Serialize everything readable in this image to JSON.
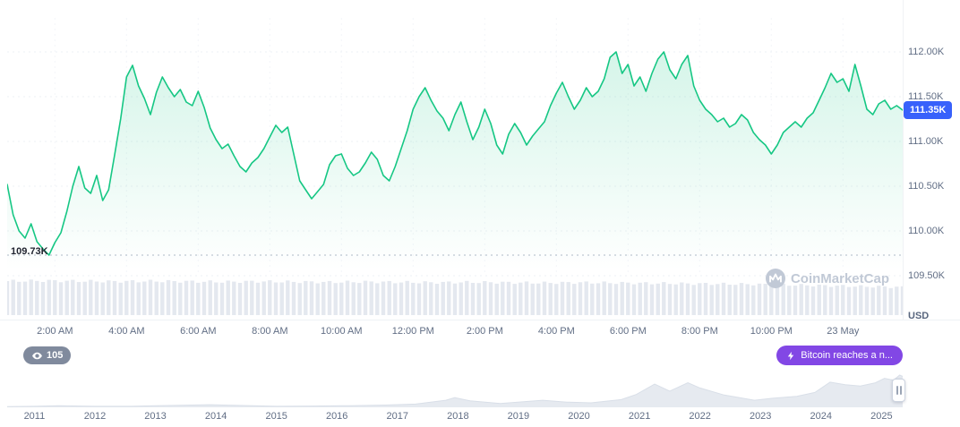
{
  "colors": {
    "line": "#16c784",
    "fill_opacity_top": 0.18,
    "grid": "#eef1f6",
    "grid_v": "#f3f5f9",
    "min_line": "#b0b9c8",
    "volume": "#e4e8ef",
    "mini_fill": "#e6eaf0",
    "mini_stroke": "#d9dfe8",
    "badge_blue": "#3861fb",
    "pill_purple": "#8247e5",
    "pill_gray": "#808a9d",
    "axis_text": "#616e85",
    "watermark": "#c1c9d6"
  },
  "badges": {
    "watch_count": "105",
    "news_ticker": "Bitcoin reaches a n..."
  },
  "watermark": {
    "text": "CoinMarketCap"
  },
  "chart_data": {
    "type": "line",
    "title": "",
    "unit_label": "USD",
    "current_price_label": "111.35K",
    "current_value_k": 111.35,
    "min_price_label": "109.73K",
    "min_value_k": 109.73,
    "ylim_k": [
      109.5,
      112.1
    ],
    "grid": "dotted",
    "legend": "none",
    "y_ticks": [
      "112.00K",
      "111.50K",
      "111.00K",
      "110.50K",
      "110.00K",
      "109.50K"
    ],
    "y_tick_values": [
      112.0,
      111.5,
      111.0,
      110.5,
      110.0,
      109.5
    ],
    "x_ticks": [
      "2:00 AM",
      "4:00 AM",
      "6:00 AM",
      "8:00 AM",
      "10:00 AM",
      "12:00 PM",
      "2:00 PM",
      "4:00 PM",
      "6:00 PM",
      "8:00 PM",
      "10:00 PM",
      "23 May"
    ],
    "x_tick_indices": [
      8,
      20,
      32,
      44,
      56,
      68,
      80,
      92,
      104,
      116,
      128,
      140
    ],
    "sample_interval_minutes": 10,
    "prices_k": [
      110.52,
      110.18,
      110.0,
      109.92,
      110.08,
      109.88,
      109.8,
      109.73,
      109.87,
      109.98,
      110.22,
      110.5,
      110.72,
      110.48,
      110.42,
      110.62,
      110.34,
      110.46,
      110.85,
      111.25,
      111.72,
      111.85,
      111.62,
      111.48,
      111.3,
      111.55,
      111.72,
      111.6,
      111.5,
      111.58,
      111.44,
      111.4,
      111.56,
      111.38,
      111.15,
      111.02,
      110.92,
      110.97,
      110.84,
      110.72,
      110.66,
      110.76,
      110.82,
      110.92,
      111.05,
      111.18,
      111.1,
      111.16,
      110.86,
      110.56,
      110.46,
      110.36,
      110.44,
      110.52,
      110.74,
      110.84,
      110.86,
      110.7,
      110.62,
      110.66,
      110.76,
      110.88,
      110.8,
      110.62,
      110.56,
      110.72,
      110.92,
      111.12,
      111.36,
      111.5,
      111.6,
      111.46,
      111.34,
      111.26,
      111.12,
      111.3,
      111.44,
      111.22,
      111.02,
      111.16,
      111.36,
      111.2,
      110.96,
      110.86,
      111.08,
      111.2,
      111.1,
      110.96,
      111.06,
      111.14,
      111.22,
      111.4,
      111.54,
      111.66,
      111.5,
      111.36,
      111.46,
      111.6,
      111.5,
      111.56,
      111.7,
      111.94,
      112.0,
      111.76,
      111.86,
      111.62,
      111.72,
      111.56,
      111.76,
      111.92,
      112.0,
      111.8,
      111.7,
      111.86,
      111.96,
      111.62,
      111.46,
      111.36,
      111.3,
      111.22,
      111.26,
      111.16,
      111.2,
      111.3,
      111.24,
      111.1,
      111.02,
      110.96,
      110.86,
      110.96,
      111.1,
      111.16,
      111.22,
      111.16,
      111.26,
      111.32,
      111.46,
      111.6,
      111.76,
      111.66,
      111.7,
      111.56,
      111.86,
      111.62,
      111.36,
      111.3,
      111.42,
      111.46,
      111.36,
      111.4,
      111.35
    ],
    "volume_profile": [
      0.95,
      0.96,
      0.95,
      0.94,
      0.95,
      0.94,
      0.93,
      0.94,
      0.93,
      0.92,
      0.93,
      0.92,
      0.91,
      0.92,
      0.91,
      0.9,
      0.91,
      0.9,
      0.89,
      0.88,
      0.87,
      0.86,
      0.84,
      0.82,
      0.8,
      0.78
    ],
    "mini_chart": {
      "type": "area",
      "year_labels": [
        "2011",
        "2012",
        "2013",
        "2014",
        "2015",
        "2016",
        "2017",
        "2018",
        "2019",
        "2020",
        "2021",
        "2022",
        "2023",
        "2024",
        "2025"
      ],
      "x_domain_years": [
        2010.55,
        2025.35
      ],
      "points": [
        [
          2010.55,
          0.02
        ],
        [
          2011.0,
          0.03
        ],
        [
          2011.4,
          0.05
        ],
        [
          2012.0,
          0.03
        ],
        [
          2012.6,
          0.03
        ],
        [
          2013.0,
          0.05
        ],
        [
          2013.4,
          0.06
        ],
        [
          2013.9,
          0.08
        ],
        [
          2014.3,
          0.06
        ],
        [
          2015.0,
          0.03
        ],
        [
          2015.6,
          0.04
        ],
        [
          2016.2,
          0.05
        ],
        [
          2016.8,
          0.07
        ],
        [
          2017.3,
          0.1
        ],
        [
          2017.8,
          0.22
        ],
        [
          2017.95,
          0.3
        ],
        [
          2018.2,
          0.2
        ],
        [
          2018.7,
          0.12
        ],
        [
          2019.4,
          0.22
        ],
        [
          2019.8,
          0.16
        ],
        [
          2020.2,
          0.14
        ],
        [
          2020.7,
          0.24
        ],
        [
          2020.95,
          0.4
        ],
        [
          2021.25,
          0.72
        ],
        [
          2021.5,
          0.5
        ],
        [
          2021.8,
          0.76
        ],
        [
          2022.0,
          0.6
        ],
        [
          2022.4,
          0.38
        ],
        [
          2022.9,
          0.22
        ],
        [
          2023.2,
          0.28
        ],
        [
          2023.6,
          0.34
        ],
        [
          2023.9,
          0.46
        ],
        [
          2024.15,
          0.78
        ],
        [
          2024.4,
          0.7
        ],
        [
          2024.65,
          0.66
        ],
        [
          2024.9,
          0.76
        ],
        [
          2025.05,
          0.9
        ],
        [
          2025.2,
          0.84
        ],
        [
          2025.3,
          1.0
        ],
        [
          2025.35,
          0.96
        ]
      ]
    }
  }
}
